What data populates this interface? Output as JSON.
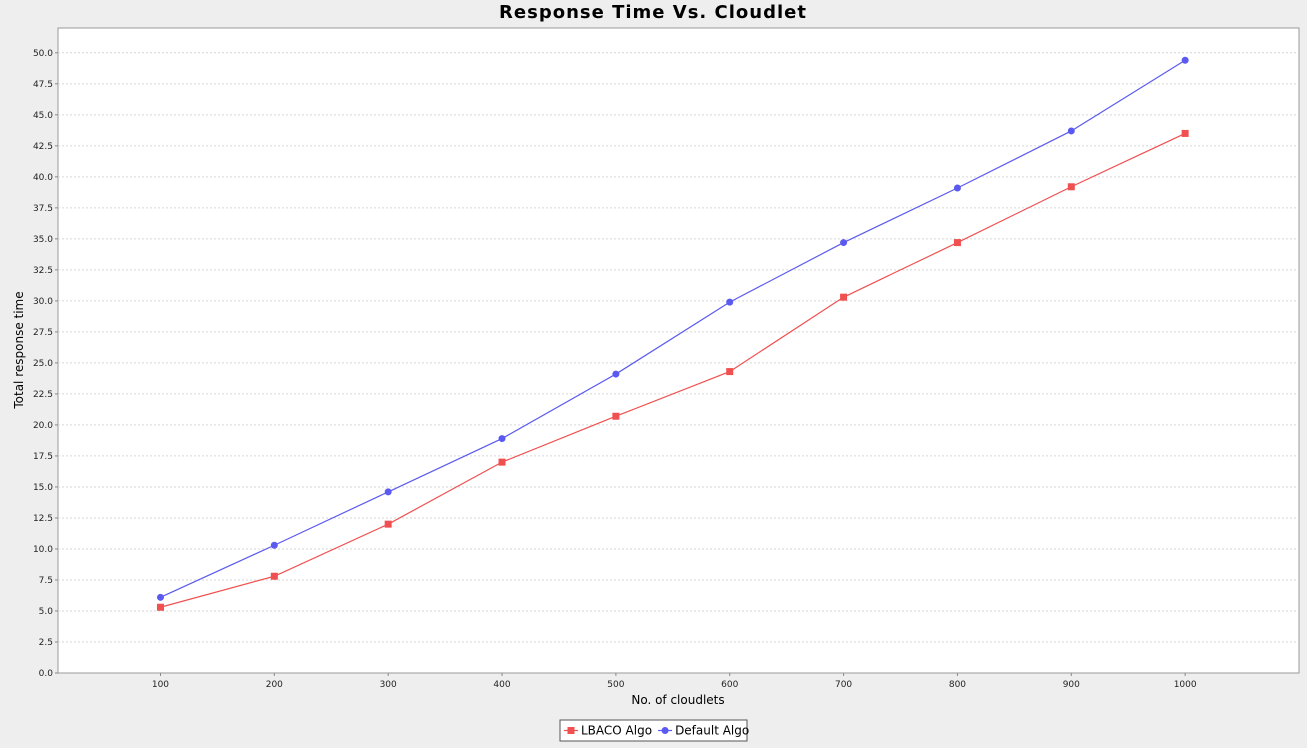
{
  "chart_data": {
    "type": "line",
    "title": "Response Time Vs. Cloudlet",
    "xlabel": "No. of cloudlets",
    "ylabel": "Total response time",
    "x": [
      100,
      200,
      300,
      400,
      500,
      600,
      700,
      800,
      900,
      1000
    ],
    "x_tick_labels": [
      "100",
      "200",
      "300",
      "400",
      "500",
      "600",
      "700",
      "800",
      "900",
      "1000"
    ],
    "xlim": [
      10,
      1100
    ],
    "ylim": [
      0,
      52
    ],
    "y_ticks": [
      0,
      2.5,
      5,
      7.5,
      10,
      12.5,
      15,
      17.5,
      20,
      22.5,
      25,
      27.5,
      30,
      32.5,
      35,
      37.5,
      40,
      42.5,
      45,
      47.5,
      50
    ],
    "y_tick_labels": [
      "0.0",
      "2.5",
      "5.0",
      "7.5",
      "10.0",
      "12.5",
      "15.0",
      "17.5",
      "20.0",
      "22.5",
      "25.0",
      "27.5",
      "30.0",
      "32.5",
      "35.0",
      "37.5",
      "40.0",
      "42.5",
      "45.0",
      "47.5",
      "50.0"
    ],
    "grid": true,
    "legend_position": "bottom-center",
    "series": [
      {
        "name": "LBACO Algo",
        "color": "#f05050",
        "marker": "square",
        "values": [
          5.3,
          7.8,
          12.0,
          17.0,
          20.7,
          24.3,
          30.3,
          34.7,
          39.2,
          43.5
        ]
      },
      {
        "name": "Default Algo",
        "color": "#5a5af0",
        "marker": "circle",
        "values": [
          6.1,
          10.3,
          14.6,
          18.9,
          24.1,
          29.9,
          34.7,
          39.1,
          43.7,
          49.4
        ]
      }
    ]
  }
}
